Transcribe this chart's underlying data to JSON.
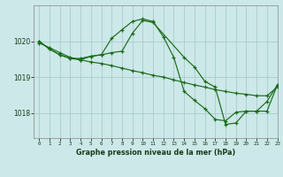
{
  "title": "Graphe pression niveau de la mer (hPa)",
  "bg_color": "#cce8e8",
  "grid_color": "#aacccc",
  "line_color": "#1a6b1a",
  "xlim": [
    -0.5,
    23
  ],
  "ylim": [
    1017.3,
    1021.0
  ],
  "yticks": [
    1018,
    1019,
    1020
  ],
  "xticks": [
    0,
    1,
    2,
    3,
    4,
    5,
    6,
    7,
    8,
    9,
    10,
    11,
    12,
    13,
    14,
    15,
    16,
    17,
    18,
    19,
    20,
    21,
    22,
    23
  ],
  "series1_x": [
    0,
    1,
    2,
    3,
    4,
    5,
    6,
    7,
    8,
    9,
    10,
    11,
    12,
    13,
    14,
    15,
    16,
    17,
    18,
    19,
    20,
    21,
    22,
    23
  ],
  "series1_y": [
    1019.95,
    1019.82,
    1019.68,
    1019.55,
    1019.48,
    1019.42,
    1019.38,
    1019.32,
    1019.25,
    1019.18,
    1019.12,
    1019.05,
    1019.0,
    1018.92,
    1018.85,
    1018.78,
    1018.72,
    1018.65,
    1018.6,
    1018.55,
    1018.52,
    1018.48,
    1018.48,
    1018.72
  ],
  "series2_x": [
    0,
    1,
    2,
    3,
    4,
    5,
    6,
    7,
    8,
    9,
    10,
    11,
    12,
    13,
    14,
    15,
    16,
    17,
    18,
    19,
    20,
    21,
    22,
    23
  ],
  "series2_y": [
    1020.0,
    1019.78,
    1019.62,
    1019.52,
    1019.52,
    1019.58,
    1019.62,
    1020.08,
    1020.32,
    1020.55,
    1020.62,
    1020.55,
    1020.12,
    1019.55,
    1018.6,
    1018.35,
    1018.12,
    1017.82,
    1017.78,
    1018.02,
    1018.05,
    1018.05,
    1018.32,
    1018.78
  ],
  "series3_x": [
    0,
    1,
    2,
    3,
    4,
    5,
    6,
    7,
    8,
    9,
    10,
    11,
    14,
    15,
    16,
    17,
    18,
    19,
    20,
    21,
    22,
    23
  ],
  "series3_y": [
    1020.0,
    1019.78,
    1019.62,
    1019.52,
    1019.48,
    1019.58,
    1019.62,
    1019.68,
    1019.72,
    1020.22,
    1020.58,
    1020.52,
    1019.55,
    1019.28,
    1018.88,
    1018.72,
    1017.68,
    1017.72,
    1018.05,
    1018.05,
    1018.05,
    1018.78
  ]
}
